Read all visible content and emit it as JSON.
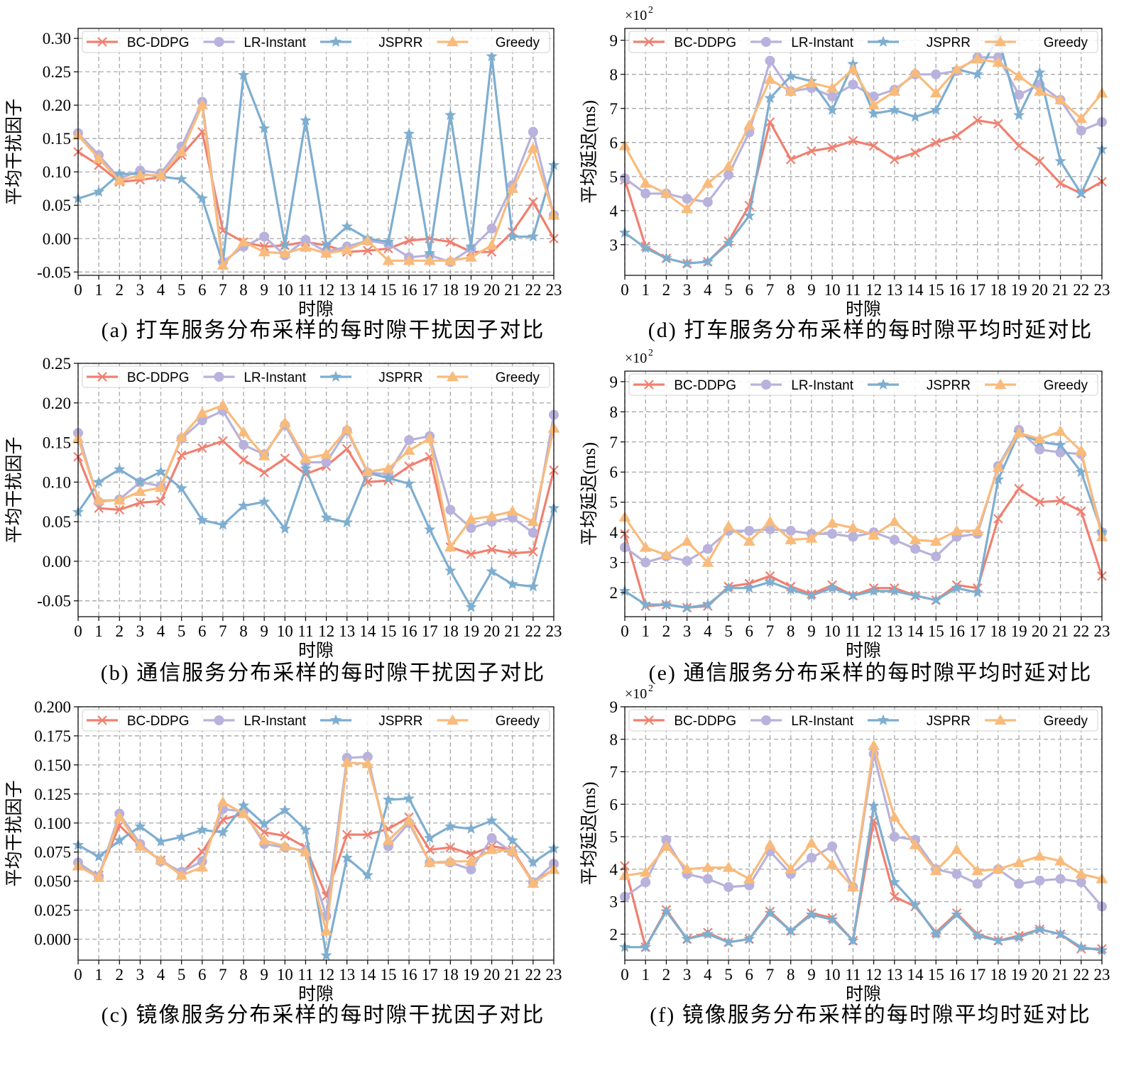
{
  "colors": {
    "BC-DDPG": "#f08070",
    "LR-Instant": "#b8b2dc",
    "JSPRR": "#7eaed0",
    "Greedy": "#f9bb7b"
  },
  "markers": {
    "BC-DDPG": "x",
    "LR-Instant": "circle",
    "JSPRR": "star",
    "Greedy": "triangle"
  },
  "chart_data": [
    {
      "id": "a",
      "type": "line",
      "caption": "(a) 打车服务分布采样的每时隙干扰因子对比",
      "xlabel": "时隙",
      "ylabel": "平均干扰因子",
      "ylim": [
        -0.055,
        0.315
      ],
      "yticks": [
        "0.30",
        "0.25",
        "0.20",
        "0.15",
        "0.10",
        "0.05",
        "0.00",
        "-0.05"
      ],
      "ytick_values": [
        0.3,
        0.25,
        0.2,
        0.15,
        0.1,
        0.05,
        0.0,
        -0.05
      ],
      "x": [
        "0",
        "1",
        "2",
        "3",
        "4",
        "5",
        "6",
        "7",
        "8",
        "9",
        "10",
        "11",
        "12",
        "13",
        "14",
        "15",
        "16",
        "17",
        "18",
        "19",
        "20",
        "21",
        "22",
        "23"
      ],
      "legend": [
        "BC-DDPG",
        "LR-Instant",
        "JSPRR",
        "Greedy"
      ],
      "series": [
        {
          "name": "BC-DDPG",
          "values": [
            0.13,
            0.11,
            0.085,
            0.088,
            0.092,
            0.125,
            0.16,
            0.012,
            -0.005,
            -0.012,
            -0.01,
            -0.005,
            -0.01,
            -0.02,
            -0.018,
            -0.015,
            -0.003,
            0.0,
            -0.005,
            -0.02,
            -0.02,
            0.01,
            0.055,
            0.0
          ]
        },
        {
          "name": "LR-Instant",
          "values": [
            0.158,
            0.125,
            0.09,
            0.102,
            0.098,
            0.138,
            0.205,
            -0.035,
            -0.012,
            0.003,
            -0.025,
            -0.002,
            -0.02,
            -0.012,
            -0.003,
            -0.008,
            -0.028,
            -0.025,
            -0.035,
            -0.015,
            0.015,
            0.08,
            0.16,
            0.035
          ]
        },
        {
          "name": "JSPRR",
          "values": [
            0.06,
            0.07,
            0.097,
            0.097,
            0.093,
            0.089,
            0.06,
            -0.037,
            0.245,
            0.165,
            -0.01,
            0.177,
            -0.01,
            0.018,
            0.0,
            -0.005,
            0.157,
            -0.022,
            0.185,
            -0.012,
            0.273,
            0.003,
            0.003,
            0.11
          ]
        },
        {
          "name": "Greedy",
          "values": [
            0.155,
            0.12,
            0.087,
            0.095,
            0.095,
            0.13,
            0.2,
            -0.04,
            -0.005,
            -0.02,
            -0.022,
            -0.013,
            -0.022,
            -0.017,
            -0.003,
            -0.033,
            -0.033,
            -0.033,
            -0.033,
            -0.028,
            -0.01,
            0.075,
            0.135,
            0.035
          ]
        }
      ]
    },
    {
      "id": "d",
      "type": "line",
      "caption": "(d) 打车服务分布采样的每时隙平均时延对比",
      "xlabel": "时隙",
      "ylabel": "平均延迟(ms)",
      "exponent_label": "×10",
      "exponent_sup": "2",
      "ylim": [
        2.1,
        9.35
      ],
      "yticks": [
        "9",
        "8",
        "7",
        "6",
        "5",
        "4",
        "3"
      ],
      "ytick_values": [
        9,
        8,
        7,
        6,
        5,
        4,
        3
      ],
      "x": [
        "0",
        "1",
        "2",
        "3",
        "4",
        "5",
        "6",
        "7",
        "8",
        "9",
        "10",
        "11",
        "12",
        "13",
        "14",
        "15",
        "16",
        "17",
        "18",
        "19",
        "20",
        "21",
        "22",
        "23"
      ],
      "legend": [
        "BC-DDPG",
        "LR-Instant",
        "JSPRR",
        "Greedy"
      ],
      "series": [
        {
          "name": "BC-DDPG",
          "values": [
            4.9,
            2.95,
            2.6,
            2.45,
            2.5,
            3.1,
            4.15,
            6.6,
            5.5,
            5.75,
            5.85,
            6.05,
            5.9,
            5.5,
            5.7,
            6.0,
            6.2,
            6.65,
            6.55,
            5.9,
            5.45,
            4.8,
            4.5,
            4.85
          ]
        },
        {
          "name": "LR-Instant",
          "values": [
            4.95,
            4.5,
            4.5,
            4.35,
            4.25,
            5.05,
            6.3,
            8.4,
            7.5,
            7.6,
            7.35,
            7.7,
            7.35,
            7.55,
            8.0,
            8.0,
            8.1,
            8.5,
            8.5,
            7.4,
            7.7,
            7.25,
            6.35,
            6.6
          ]
        },
        {
          "name": "JSPRR",
          "values": [
            3.35,
            2.9,
            2.6,
            2.45,
            2.5,
            3.05,
            3.85,
            7.3,
            7.95,
            7.8,
            6.95,
            8.3,
            6.85,
            6.95,
            6.75,
            6.95,
            8.15,
            8.0,
            9.1,
            6.8,
            8.05,
            5.45,
            4.5,
            5.8
          ]
        },
        {
          "name": "Greedy",
          "values": [
            5.9,
            4.8,
            4.5,
            4.05,
            4.8,
            5.3,
            6.5,
            7.85,
            7.5,
            7.75,
            7.6,
            8.15,
            7.1,
            7.5,
            8.05,
            7.45,
            8.15,
            8.45,
            8.35,
            7.95,
            7.5,
            7.25,
            6.7,
            7.45
          ]
        }
      ]
    },
    {
      "id": "b",
      "type": "line",
      "caption": "(b) 通信服务分布采样的每时隙干扰因子对比",
      "xlabel": "时隙",
      "ylabel": "平均干扰因子",
      "ylim": [
        -0.07,
        0.25
      ],
      "yticks": [
        "0.25",
        "0.20",
        "0.15",
        "0.10",
        "0.05",
        "0.00",
        "-0.05"
      ],
      "ytick_values": [
        0.25,
        0.2,
        0.15,
        0.1,
        0.05,
        0.0,
        -0.05
      ],
      "x": [
        "0",
        "1",
        "2",
        "3",
        "4",
        "5",
        "6",
        "7",
        "8",
        "9",
        "10",
        "11",
        "12",
        "13",
        "14",
        "15",
        "16",
        "17",
        "18",
        "19",
        "20",
        "21",
        "22",
        "23"
      ],
      "legend": [
        "BC-DDPG",
        "LR-Instant",
        "JSPRR",
        "Greedy"
      ],
      "series": [
        {
          "name": "BC-DDPG",
          "values": [
            0.132,
            0.067,
            0.065,
            0.074,
            0.076,
            0.134,
            0.143,
            0.152,
            0.128,
            0.112,
            0.13,
            0.11,
            0.12,
            0.142,
            0.1,
            0.102,
            0.12,
            0.132,
            0.018,
            0.009,
            0.015,
            0.01,
            0.012,
            0.115
          ]
        },
        {
          "name": "LR-Instant",
          "values": [
            0.162,
            0.075,
            0.078,
            0.1,
            0.095,
            0.155,
            0.178,
            0.19,
            0.147,
            0.135,
            0.172,
            0.125,
            0.125,
            0.165,
            0.112,
            0.11,
            0.153,
            0.158,
            0.065,
            0.042,
            0.05,
            0.055,
            0.036,
            0.185
          ]
        },
        {
          "name": "JSPRR",
          "values": [
            0.062,
            0.1,
            0.116,
            0.1,
            0.113,
            0.092,
            0.052,
            0.046,
            0.07,
            0.075,
            0.041,
            0.117,
            0.055,
            0.049,
            0.112,
            0.105,
            0.098,
            0.04,
            -0.012,
            -0.058,
            -0.013,
            -0.029,
            -0.032,
            0.067
          ]
        },
        {
          "name": "Greedy",
          "values": [
            0.155,
            0.077,
            0.077,
            0.088,
            0.093,
            0.157,
            0.187,
            0.197,
            0.163,
            0.133,
            0.175,
            0.13,
            0.135,
            0.167,
            0.113,
            0.117,
            0.14,
            0.155,
            0.018,
            0.053,
            0.057,
            0.063,
            0.05,
            0.168
          ]
        }
      ]
    },
    {
      "id": "e",
      "type": "line",
      "caption": "(e) 通信服务分布采样的每时隙平均时延对比",
      "xlabel": "时隙",
      "ylabel": "平均延迟(ms)",
      "exponent_label": "×10",
      "exponent_sup": "2",
      "ylim": [
        1.2,
        9.35
      ],
      "yticks": [
        "9",
        "8",
        "7",
        "6",
        "5",
        "4",
        "3",
        "2"
      ],
      "ytick_values": [
        9,
        8,
        7,
        6,
        5,
        4,
        3,
        2
      ],
      "x": [
        "0",
        "1",
        "2",
        "3",
        "4",
        "5",
        "6",
        "7",
        "8",
        "9",
        "10",
        "11",
        "12",
        "13",
        "14",
        "15",
        "16",
        "17",
        "18",
        "19",
        "20",
        "21",
        "22",
        "23"
      ],
      "legend": [
        "BC-DDPG",
        "LR-Instant",
        "JSPRR",
        "Greedy"
      ],
      "series": [
        {
          "name": "BC-DDPG",
          "values": [
            3.95,
            1.55,
            1.6,
            1.5,
            1.55,
            2.2,
            2.3,
            2.55,
            2.2,
            1.95,
            2.25,
            1.9,
            2.15,
            2.15,
            1.9,
            1.75,
            2.25,
            2.15,
            4.45,
            5.45,
            5.0,
            5.05,
            4.7,
            2.55
          ]
        },
        {
          "name": "LR-Instant",
          "values": [
            3.5,
            3.0,
            3.2,
            3.05,
            3.45,
            4.05,
            4.05,
            4.1,
            4.05,
            3.95,
            3.95,
            3.85,
            4.0,
            3.75,
            3.45,
            3.2,
            3.85,
            3.95,
            6.2,
            7.4,
            6.75,
            6.65,
            6.6,
            4.0
          ]
        },
        {
          "name": "JSPRR",
          "values": [
            2.05,
            1.6,
            1.6,
            1.5,
            1.6,
            2.15,
            2.15,
            2.35,
            2.1,
            1.9,
            2.15,
            1.9,
            2.05,
            2.05,
            1.9,
            1.75,
            2.15,
            2.0,
            5.75,
            7.3,
            7.0,
            6.9,
            6.0,
            4.0
          ]
        },
        {
          "name": "Greedy",
          "values": [
            4.5,
            3.5,
            3.25,
            3.7,
            3.0,
            4.2,
            3.7,
            4.35,
            3.75,
            3.8,
            4.3,
            4.15,
            3.9,
            4.35,
            3.75,
            3.7,
            4.05,
            4.05,
            6.15,
            7.3,
            7.1,
            7.35,
            6.7,
            3.85
          ]
        }
      ]
    },
    {
      "id": "c",
      "type": "line",
      "caption": "(c) 镜像服务分布采样的每时隙干扰因子对比",
      "xlabel": "时隙",
      "ylabel": "平均干扰因子",
      "ylim": [
        -0.018,
        0.2
      ],
      "yticks": [
        "0.200",
        "0.175",
        "0.150",
        "0.125",
        "0.100",
        "0.075",
        "0.050",
        "0.025",
        "0.000"
      ],
      "ytick_values": [
        0.2,
        0.175,
        0.15,
        0.125,
        0.1,
        0.075,
        0.05,
        0.025,
        0.0
      ],
      "x": [
        "0",
        "1",
        "2",
        "3",
        "4",
        "5",
        "6",
        "7",
        "8",
        "9",
        "10",
        "11",
        "12",
        "13",
        "14",
        "15",
        "16",
        "17",
        "18",
        "19",
        "20",
        "21",
        "22",
        "23"
      ],
      "legend": [
        "BC-DDPG",
        "LR-Instant",
        "JSPRR",
        "Greedy"
      ],
      "series": [
        {
          "name": "BC-DDPG",
          "values": [
            0.063,
            0.055,
            0.098,
            0.08,
            0.068,
            0.057,
            0.075,
            0.103,
            0.108,
            0.092,
            0.089,
            0.079,
            0.037,
            0.09,
            0.09,
            0.095,
            0.105,
            0.077,
            0.079,
            0.073,
            0.08,
            0.077,
            0.049,
            0.06
          ]
        },
        {
          "name": "LR-Instant",
          "values": [
            0.066,
            0.054,
            0.108,
            0.082,
            0.067,
            0.058,
            0.067,
            0.112,
            0.11,
            0.082,
            0.079,
            0.076,
            0.02,
            0.156,
            0.157,
            0.08,
            0.1,
            0.066,
            0.066,
            0.06,
            0.087,
            0.075,
            0.049,
            0.065
          ]
        },
        {
          "name": "JSPRR",
          "values": [
            0.081,
            0.071,
            0.085,
            0.097,
            0.084,
            0.088,
            0.094,
            0.092,
            0.115,
            0.099,
            0.111,
            0.094,
            -0.014,
            0.07,
            0.055,
            0.12,
            0.121,
            0.087,
            0.097,
            0.095,
            0.102,
            0.085,
            0.066,
            0.078
          ]
        },
        {
          "name": "Greedy",
          "values": [
            0.063,
            0.053,
            0.105,
            0.08,
            0.068,
            0.055,
            0.062,
            0.118,
            0.108,
            0.085,
            0.08,
            0.075,
            0.007,
            0.152,
            0.151,
            0.085,
            0.102,
            0.066,
            0.067,
            0.067,
            0.077,
            0.076,
            0.048,
            0.06
          ]
        }
      ]
    },
    {
      "id": "f",
      "type": "line",
      "caption": "(f) 镜像服务分布采样的每时隙平均时延对比",
      "xlabel": "时隙",
      "ylabel": "平均延迟(ms)",
      "exponent_label": "×10",
      "exponent_sup": "2",
      "ylim": [
        1.2,
        9.0
      ],
      "yticks": [
        "9",
        "8",
        "7",
        "6",
        "5",
        "4",
        "3",
        "2"
      ],
      "ytick_values": [
        9,
        8,
        7,
        6,
        5,
        4,
        3,
        2
      ],
      "x": [
        "0",
        "1",
        "2",
        "3",
        "4",
        "5",
        "6",
        "7",
        "8",
        "9",
        "10",
        "11",
        "12",
        "13",
        "14",
        "15",
        "16",
        "17",
        "18",
        "19",
        "20",
        "21",
        "22",
        "23"
      ],
      "legend": [
        "BC-DDPG",
        "LR-Instant",
        "JSPRR",
        "Greedy"
      ],
      "series": [
        {
          "name": "BC-DDPG",
          "values": [
            4.1,
            1.6,
            2.75,
            1.85,
            2.05,
            1.75,
            1.85,
            2.7,
            2.1,
            2.65,
            2.5,
            1.8,
            5.5,
            3.15,
            2.85,
            2.05,
            2.65,
            2.0,
            1.8,
            1.95,
            2.15,
            2.0,
            1.55,
            1.55
          ]
        },
        {
          "name": "LR-Instant",
          "values": [
            3.15,
            3.6,
            4.9,
            3.85,
            3.7,
            3.45,
            3.5,
            4.55,
            3.85,
            4.35,
            4.7,
            3.45,
            7.55,
            5.0,
            4.9,
            4.0,
            3.85,
            3.55,
            4.0,
            3.55,
            3.65,
            3.7,
            3.6,
            2.85
          ]
        },
        {
          "name": "JSPRR",
          "values": [
            1.6,
            1.6,
            2.7,
            1.85,
            2.0,
            1.75,
            1.85,
            2.65,
            2.1,
            2.6,
            2.45,
            1.8,
            5.95,
            3.6,
            2.9,
            2.0,
            2.6,
            1.95,
            1.8,
            1.9,
            2.15,
            2.0,
            1.6,
            1.5
          ]
        },
        {
          "name": "Greedy",
          "values": [
            3.8,
            3.9,
            4.7,
            4.0,
            4.05,
            4.05,
            3.7,
            4.75,
            4.0,
            4.8,
            4.15,
            3.45,
            7.8,
            5.6,
            4.75,
            3.95,
            4.6,
            3.95,
            4.0,
            4.2,
            4.4,
            4.25,
            3.85,
            3.7
          ]
        }
      ]
    }
  ]
}
